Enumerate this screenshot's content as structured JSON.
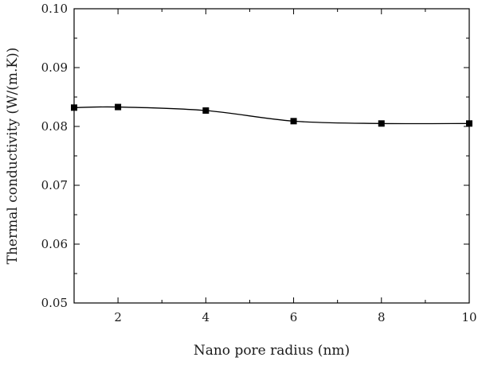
{
  "chart_data": {
    "type": "line",
    "title": "",
    "xlabel": "Nano pore radius (nm)",
    "ylabel": "Thermal conductivity (W/(m.K))",
    "xlim": [
      1,
      10
    ],
    "ylim": [
      0.05,
      0.1
    ],
    "x_ticks": [
      2,
      4,
      6,
      8,
      10
    ],
    "x_tick_labels": [
      "2",
      "4",
      "6",
      "8",
      "10"
    ],
    "y_ticks": [
      0.05,
      0.06,
      0.07,
      0.08,
      0.09,
      0.1
    ],
    "y_tick_labels": [
      "0.05",
      "0.06",
      "0.07",
      "0.08",
      "0.09",
      "0.10"
    ],
    "grid": false,
    "legend": "none",
    "marker": "square",
    "series": [
      {
        "x": [
          1,
          2,
          4,
          6,
          8,
          10
        ],
        "y": [
          0.0832,
          0.0833,
          0.0827,
          0.0809,
          0.0805,
          0.0805
        ],
        "color": "#000000"
      }
    ]
  }
}
